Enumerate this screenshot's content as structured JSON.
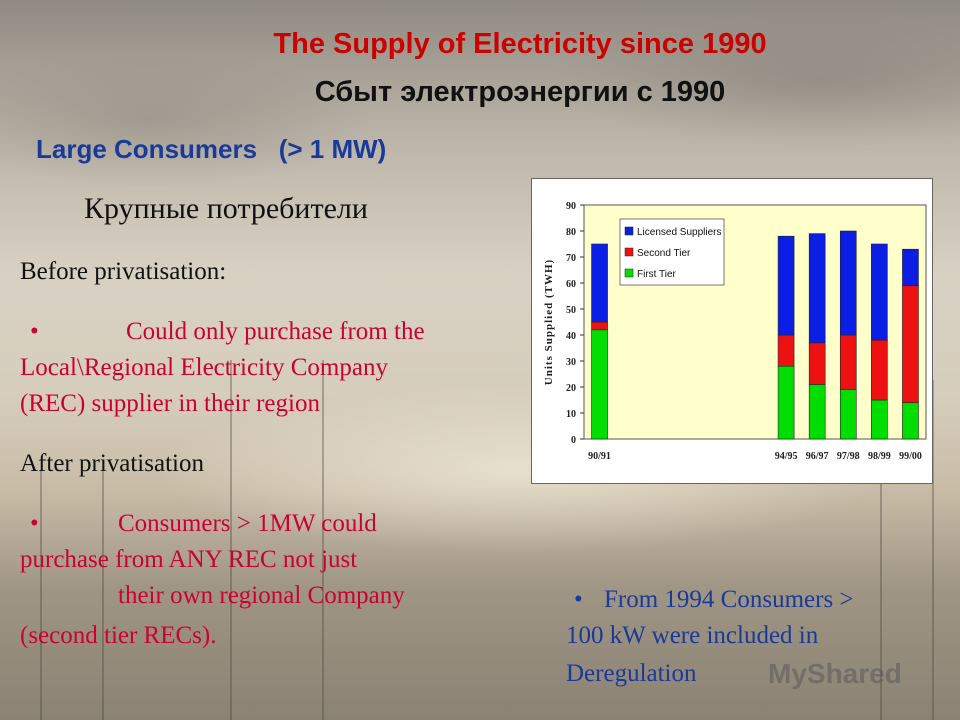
{
  "slide": {
    "title_en": "The Supply of Electricity since 1990",
    "title_ru": "Сбыт электроэнергии с 1990",
    "subtitle_en": "Large Consumers   (> 1 MW)",
    "subtitle_ru": "Крупные потребители",
    "before_heading": "Before privatisation:",
    "before_bullet_line1": "Could only purchase from the",
    "before_bullet_line2": "Local\\Regional Electricity Company",
    "before_bullet_line3": "(REC) supplier in their region",
    "after_heading": "After privatisation",
    "after_bullet_line1": "Consumers > 1MW could",
    "after_bullet_line2": "purchase from ANY REC not just",
    "after_bullet_line3": "their own regional Company",
    "after_bullet_line4": "(second tier RECs).",
    "note_line1": "From 1994  Consumers >",
    "note_line2": "100 kW were included in",
    "note_line3": "Deregulation",
    "watermark": "MyShared",
    "bullet": "•"
  },
  "chart_data": {
    "type": "bar",
    "stacked": true,
    "ylabel": "Units Supplied (TWH)",
    "ylim": [
      0,
      90
    ],
    "yticks": [
      0,
      10,
      20,
      30,
      40,
      50,
      60,
      70,
      80,
      90
    ],
    "categories": [
      "90/91",
      "94/95",
      "96/97",
      "97/98",
      "98/99",
      "99/00"
    ],
    "series": [
      {
        "name": "First Tier",
        "color": "#00dd00",
        "values": [
          42,
          28,
          21,
          19,
          15,
          14
        ]
      },
      {
        "name": "Second Tier",
        "color": "#ee1111",
        "values": [
          3,
          12,
          16,
          21,
          23,
          45
        ]
      },
      {
        "name": "Licensed Suppliers",
        "color": "#0a1ee6",
        "values": [
          30,
          38,
          42,
          40,
          37,
          14
        ]
      }
    ],
    "legend_position": "top-left",
    "plot_bg": "#ffffcc"
  }
}
